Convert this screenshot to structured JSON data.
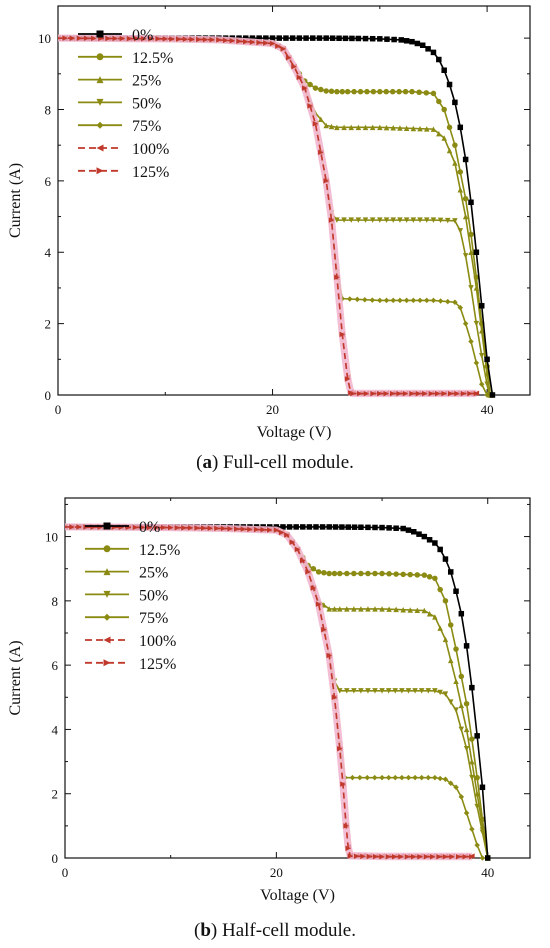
{
  "figure": {
    "captions": [
      {
        "letter": "a",
        "text": "Full-cell module."
      },
      {
        "letter": "b",
        "text": "Half-cell module."
      }
    ]
  },
  "colors": {
    "black": "#000000",
    "olive": "#8b8b14",
    "red": "#c0392b",
    "pink_glow": "#f2b8d0"
  },
  "chart_data": [
    {
      "type": "line",
      "panel": "a",
      "title": "",
      "xlabel": "Voltage (V)",
      "ylabel": "Current (A)",
      "xlim": [
        0,
        44
      ],
      "ylim": [
        0,
        10.9
      ],
      "xticks": [
        0,
        20,
        40
      ],
      "yticks": [
        0,
        2,
        4,
        6,
        8,
        10
      ],
      "grid": false,
      "legend": {
        "position": "top-left",
        "entries": [
          "0%",
          "12.5%",
          "25%",
          "50%",
          "75%",
          "100%",
          "125%"
        ]
      },
      "series": [
        {
          "name": "0%",
          "color": "#000000",
          "marker": "square",
          "dashed": false,
          "x": [
            0,
            5,
            10,
            15,
            20,
            25,
            28,
            30,
            32,
            33,
            34,
            35,
            35.5,
            36,
            36.5,
            37,
            37.5,
            38,
            38.5,
            39,
            39.5,
            40,
            40.5
          ],
          "y": [
            10.0,
            10.0,
            10.0,
            10.0,
            10.0,
            10.0,
            9.99,
            9.98,
            9.95,
            9.9,
            9.8,
            9.6,
            9.4,
            9.1,
            8.7,
            8.2,
            7.5,
            6.6,
            5.4,
            4.0,
            2.5,
            1.0,
            0.0
          ]
        },
        {
          "name": "12.5%",
          "color": "#8b8b14",
          "marker": "circle",
          "dashed": false,
          "x": [
            0,
            10,
            15,
            20,
            21,
            22,
            23,
            24,
            25,
            26,
            27,
            30,
            33,
            35,
            36,
            37,
            38,
            38.5,
            39,
            39.5,
            40,
            40.5
          ],
          "y": [
            10.0,
            9.98,
            9.95,
            9.85,
            9.7,
            9.2,
            8.8,
            8.6,
            8.52,
            8.5,
            8.5,
            8.5,
            8.5,
            8.45,
            8.0,
            7.0,
            5.5,
            4.5,
            3.3,
            2.0,
            0.8,
            0.0
          ]
        },
        {
          "name": "25%",
          "color": "#8b8b14",
          "marker": "triangle-up",
          "dashed": false,
          "x": [
            0,
            10,
            15,
            20,
            21,
            22,
            23,
            24,
            25,
            26,
            30,
            35,
            36,
            37,
            38,
            39,
            39.5,
            40,
            40.3
          ],
          "y": [
            10.0,
            9.98,
            9.95,
            9.85,
            9.7,
            9.2,
            8.6,
            7.9,
            7.55,
            7.5,
            7.5,
            7.45,
            7.2,
            6.5,
            5.0,
            3.0,
            1.8,
            0.6,
            0.0
          ]
        },
        {
          "name": "50%",
          "color": "#8b8b14",
          "marker": "triangle-down",
          "dashed": false,
          "x": [
            0,
            10,
            15,
            20,
            21,
            22,
            23,
            24,
            25,
            25.5,
            26,
            30,
            35,
            37,
            37.5,
            38,
            38.5,
            39,
            39.5,
            40,
            40.2
          ],
          "y": [
            10.0,
            9.98,
            9.95,
            9.85,
            9.7,
            9.2,
            8.6,
            7.6,
            6.0,
            5.1,
            4.9,
            4.9,
            4.9,
            4.88,
            4.6,
            3.9,
            3.0,
            2.0,
            1.1,
            0.3,
            0.0
          ]
        },
        {
          "name": "75%",
          "color": "#8b8b14",
          "marker": "diamond",
          "dashed": false,
          "x": [
            0,
            10,
            15,
            20,
            21,
            22,
            23,
            24,
            25,
            25.5,
            26,
            26.5,
            30,
            35,
            37,
            37.5,
            38,
            38.5,
            39,
            39.5,
            40
          ],
          "y": [
            10.0,
            9.98,
            9.95,
            9.85,
            9.7,
            9.2,
            8.6,
            7.6,
            6.0,
            4.8,
            3.5,
            2.7,
            2.65,
            2.65,
            2.6,
            2.45,
            2.0,
            1.5,
            0.9,
            0.3,
            0.0
          ]
        },
        {
          "name": "100%",
          "color": "#c0392b",
          "marker": "triangle-left",
          "dashed": true,
          "x": [
            0,
            10,
            15,
            20,
            21,
            22,
            23,
            24,
            25,
            25.5,
            26,
            26.5,
            27,
            27.3,
            27.5,
            30,
            33,
            36,
            39
          ],
          "y": [
            10.0,
            9.98,
            9.95,
            9.85,
            9.7,
            9.2,
            8.6,
            7.6,
            6.0,
            4.9,
            3.3,
            1.7,
            0.5,
            0.08,
            0.05,
            0.05,
            0.05,
            0.05,
            0.05
          ]
        },
        {
          "name": "125%",
          "color": "#c0392b",
          "marker": "triangle-right",
          "dashed": true,
          "x": [
            0,
            10,
            15,
            20,
            21,
            22,
            23,
            24,
            25,
            25.5,
            26,
            26.5,
            27,
            27.3,
            27.5,
            30,
            33,
            36,
            39
          ],
          "y": [
            10.0,
            9.98,
            9.95,
            9.85,
            9.7,
            9.2,
            8.6,
            7.6,
            6.0,
            4.9,
            3.3,
            1.7,
            0.45,
            0.06,
            0.04,
            0.04,
            0.04,
            0.04,
            0.04
          ]
        }
      ]
    },
    {
      "type": "line",
      "panel": "b",
      "title": "",
      "xlabel": "Voltage (V)",
      "ylabel": "Current (A)",
      "xlim": [
        0,
        44
      ],
      "ylim": [
        0,
        11.2
      ],
      "xticks": [
        0,
        20,
        40
      ],
      "yticks": [
        0,
        2,
        4,
        6,
        8,
        10
      ],
      "grid": false,
      "legend": {
        "position": "top-left",
        "entries": [
          "0%",
          "12.5%",
          "25%",
          "50%",
          "75%",
          "100%",
          "125%"
        ]
      },
      "series": [
        {
          "name": "0%",
          "color": "#000000",
          "marker": "square",
          "dashed": false,
          "x": [
            0,
            5,
            10,
            15,
            20,
            25,
            28,
            30,
            32,
            33,
            34,
            35,
            35.5,
            36,
            36.5,
            37,
            37.5,
            38,
            38.5,
            39,
            39.5,
            40
          ],
          "y": [
            10.3,
            10.3,
            10.3,
            10.3,
            10.3,
            10.3,
            10.29,
            10.28,
            10.25,
            10.15,
            10.0,
            9.8,
            9.6,
            9.3,
            8.9,
            8.3,
            7.6,
            6.6,
            5.3,
            3.8,
            2.2,
            0.0
          ]
        },
        {
          "name": "12.5%",
          "color": "#8b8b14",
          "marker": "circle",
          "dashed": false,
          "x": [
            0,
            10,
            15,
            20,
            21,
            22,
            23,
            24,
            25,
            26,
            30,
            34,
            35,
            36,
            37,
            38,
            38.5,
            39,
            39.5,
            40
          ],
          "y": [
            10.3,
            10.28,
            10.25,
            10.2,
            10.05,
            9.6,
            9.1,
            8.9,
            8.85,
            8.85,
            8.85,
            8.8,
            8.7,
            8.0,
            6.5,
            4.8,
            3.7,
            2.5,
            1.2,
            0.0
          ]
        },
        {
          "name": "25%",
          "color": "#8b8b14",
          "marker": "triangle-up",
          "dashed": false,
          "x": [
            0,
            10,
            15,
            20,
            21,
            22,
            23,
            24,
            25,
            26,
            30,
            34,
            35,
            36,
            37,
            38,
            39,
            39.5,
            40
          ],
          "y": [
            10.3,
            10.28,
            10.25,
            10.2,
            10.05,
            9.6,
            8.9,
            8.0,
            7.75,
            7.75,
            7.75,
            7.7,
            7.5,
            6.8,
            5.5,
            4.0,
            2.0,
            1.0,
            0.0
          ]
        },
        {
          "name": "50%",
          "color": "#8b8b14",
          "marker": "triangle-down",
          "dashed": false,
          "x": [
            0,
            10,
            15,
            20,
            21,
            22,
            23,
            24,
            25,
            25.5,
            26,
            30,
            35,
            36,
            37,
            38,
            38.5,
            39,
            39.5,
            40
          ],
          "y": [
            10.3,
            10.28,
            10.25,
            10.2,
            10.05,
            9.6,
            8.9,
            7.9,
            6.3,
            5.5,
            5.2,
            5.2,
            5.2,
            5.1,
            4.6,
            3.4,
            2.5,
            1.6,
            0.8,
            0.0
          ]
        },
        {
          "name": "75%",
          "color": "#8b8b14",
          "marker": "diamond",
          "dashed": false,
          "x": [
            0,
            10,
            15,
            20,
            21,
            22,
            23,
            24,
            25,
            25.5,
            26,
            26.5,
            30,
            35,
            36,
            37,
            37.5,
            38,
            38.5,
            39,
            39.5
          ],
          "y": [
            10.3,
            10.28,
            10.25,
            10.2,
            10.05,
            9.6,
            8.9,
            7.9,
            6.3,
            5.0,
            3.6,
            2.5,
            2.5,
            2.5,
            2.45,
            2.2,
            1.9,
            1.4,
            0.9,
            0.4,
            0.0
          ]
        },
        {
          "name": "100%",
          "color": "#c0392b",
          "marker": "triangle-left",
          "dashed": true,
          "x": [
            0,
            10,
            15,
            20,
            21,
            22,
            23,
            24,
            25,
            25.5,
            26,
            26.3,
            26.6,
            26.8,
            27,
            30,
            33,
            36,
            38.5
          ],
          "y": [
            10.3,
            10.28,
            10.25,
            10.2,
            10.05,
            9.6,
            8.9,
            7.9,
            6.3,
            5.0,
            3.4,
            2.3,
            1.0,
            0.35,
            0.08,
            0.06,
            0.06,
            0.06,
            0.06
          ]
        },
        {
          "name": "125%",
          "color": "#c0392b",
          "marker": "triangle-right",
          "dashed": true,
          "x": [
            0,
            10,
            15,
            20,
            21,
            22,
            23,
            24,
            25,
            25.5,
            26,
            26.3,
            26.6,
            26.8,
            27,
            30,
            33,
            36,
            38.5
          ],
          "y": [
            10.3,
            10.28,
            10.25,
            10.2,
            10.05,
            9.6,
            8.9,
            7.9,
            6.3,
            5.0,
            3.4,
            2.3,
            1.0,
            0.3,
            0.06,
            0.04,
            0.04,
            0.04,
            0.04
          ]
        }
      ]
    }
  ]
}
